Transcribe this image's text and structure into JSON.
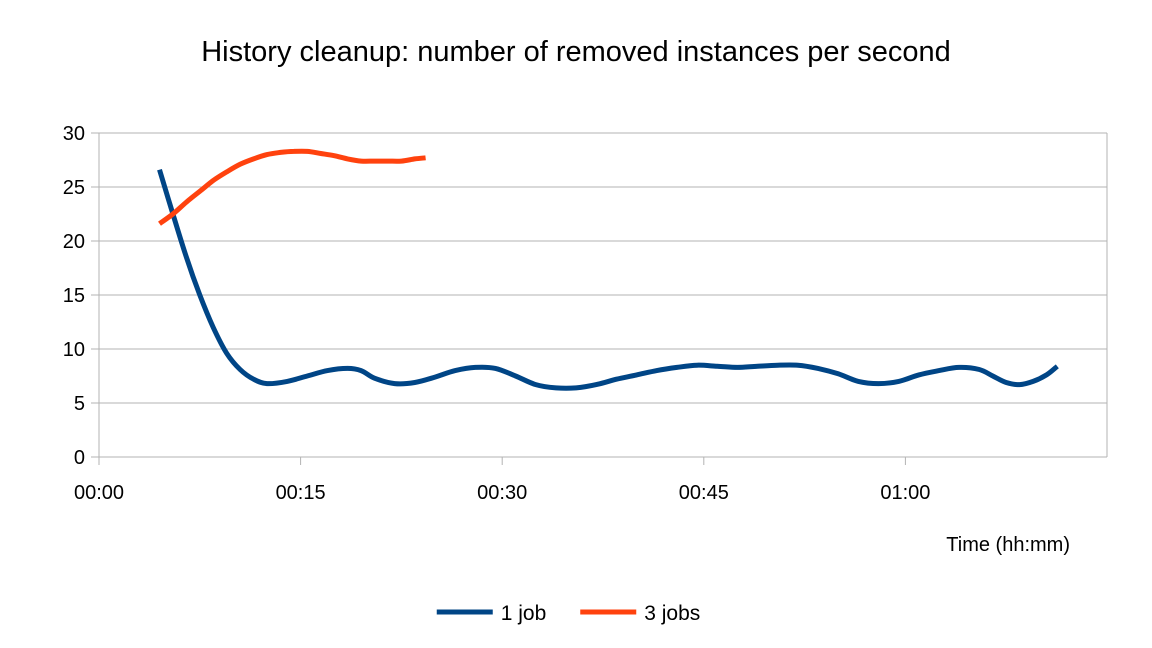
{
  "chart_data": {
    "type": "line",
    "title": "History cleanup: number of removed instances per second",
    "xlabel": "Time (hh:mm)",
    "ylabel": "",
    "x_unit": "minutes",
    "xlim": [
      0,
      75
    ],
    "ylim": [
      0,
      30
    ],
    "x_ticks": [
      {
        "value": 0,
        "label": "00:00"
      },
      {
        "value": 15,
        "label": "00:15"
      },
      {
        "value": 30,
        "label": "00:30"
      },
      {
        "value": 45,
        "label": "00:45"
      },
      {
        "value": 60,
        "label": "01:00"
      }
    ],
    "y_ticks": [
      {
        "value": 0,
        "label": "0"
      },
      {
        "value": 5,
        "label": "5"
      },
      {
        "value": 10,
        "label": "10"
      },
      {
        "value": 15,
        "label": "15"
      },
      {
        "value": 20,
        "label": "20"
      },
      {
        "value": 25,
        "label": "25"
      },
      {
        "value": 30,
        "label": "30"
      }
    ],
    "grid": true,
    "legend_position": "bottom",
    "series": [
      {
        "name": "1 job",
        "color": "#004586",
        "points": [
          {
            "x": 4.5,
            "y": 26.6
          },
          {
            "x": 5.5,
            "y": 22.5
          },
          {
            "x": 6.5,
            "y": 18.5
          },
          {
            "x": 7.5,
            "y": 15.0
          },
          {
            "x": 8.5,
            "y": 12.0
          },
          {
            "x": 9.5,
            "y": 9.6
          },
          {
            "x": 10.5,
            "y": 8.1
          },
          {
            "x": 11.5,
            "y": 7.2
          },
          {
            "x": 12.5,
            "y": 6.8
          },
          {
            "x": 14.0,
            "y": 7.0
          },
          {
            "x": 15.5,
            "y": 7.5
          },
          {
            "x": 17.0,
            "y": 8.0
          },
          {
            "x": 18.5,
            "y": 8.2
          },
          {
            "x": 19.5,
            "y": 8.0
          },
          {
            "x": 20.5,
            "y": 7.3
          },
          {
            "x": 22.0,
            "y": 6.8
          },
          {
            "x": 23.5,
            "y": 6.9
          },
          {
            "x": 25.0,
            "y": 7.4
          },
          {
            "x": 26.5,
            "y": 8.0
          },
          {
            "x": 28.0,
            "y": 8.3
          },
          {
            "x": 29.5,
            "y": 8.2
          },
          {
            "x": 31.0,
            "y": 7.5
          },
          {
            "x": 32.5,
            "y": 6.7
          },
          {
            "x": 34.0,
            "y": 6.4
          },
          {
            "x": 35.5,
            "y": 6.4
          },
          {
            "x": 37.0,
            "y": 6.7
          },
          {
            "x": 38.5,
            "y": 7.2
          },
          {
            "x": 40.0,
            "y": 7.6
          },
          {
            "x": 41.5,
            "y": 8.0
          },
          {
            "x": 43.0,
            "y": 8.3
          },
          {
            "x": 44.5,
            "y": 8.5
          },
          {
            "x": 46.0,
            "y": 8.4
          },
          {
            "x": 47.5,
            "y": 8.3
          },
          {
            "x": 49.0,
            "y": 8.4
          },
          {
            "x": 50.5,
            "y": 8.5
          },
          {
            "x": 52.0,
            "y": 8.5
          },
          {
            "x": 53.5,
            "y": 8.2
          },
          {
            "x": 55.0,
            "y": 7.7
          },
          {
            "x": 56.5,
            "y": 7.0
          },
          {
            "x": 58.0,
            "y": 6.8
          },
          {
            "x": 59.5,
            "y": 7.0
          },
          {
            "x": 61.0,
            "y": 7.6
          },
          {
            "x": 62.5,
            "y": 8.0
          },
          {
            "x": 64.0,
            "y": 8.3
          },
          {
            "x": 65.5,
            "y": 8.1
          },
          {
            "x": 66.5,
            "y": 7.5
          },
          {
            "x": 67.5,
            "y": 6.9
          },
          {
            "x": 68.5,
            "y": 6.7
          },
          {
            "x": 69.5,
            "y": 7.0
          },
          {
            "x": 70.5,
            "y": 7.6
          },
          {
            "x": 71.3,
            "y": 8.4
          }
        ]
      },
      {
        "name": "3 jobs",
        "color": "#ff420e",
        "points": [
          {
            "x": 4.5,
            "y": 21.6
          },
          {
            "x": 5.5,
            "y": 22.5
          },
          {
            "x": 6.5,
            "y": 23.6
          },
          {
            "x": 7.5,
            "y": 24.6
          },
          {
            "x": 8.5,
            "y": 25.6
          },
          {
            "x": 9.5,
            "y": 26.4
          },
          {
            "x": 10.5,
            "y": 27.1
          },
          {
            "x": 11.5,
            "y": 27.6
          },
          {
            "x": 12.5,
            "y": 28.0
          },
          {
            "x": 13.5,
            "y": 28.2
          },
          {
            "x": 14.5,
            "y": 28.3
          },
          {
            "x": 15.5,
            "y": 28.3
          },
          {
            "x": 16.5,
            "y": 28.1
          },
          {
            "x": 17.5,
            "y": 27.9
          },
          {
            "x": 18.5,
            "y": 27.6
          },
          {
            "x": 19.5,
            "y": 27.4
          },
          {
            "x": 20.5,
            "y": 27.4
          },
          {
            "x": 21.5,
            "y": 27.4
          },
          {
            "x": 22.5,
            "y": 27.4
          },
          {
            "x": 23.5,
            "y": 27.6
          },
          {
            "x": 24.3,
            "y": 27.7
          }
        ]
      }
    ]
  }
}
